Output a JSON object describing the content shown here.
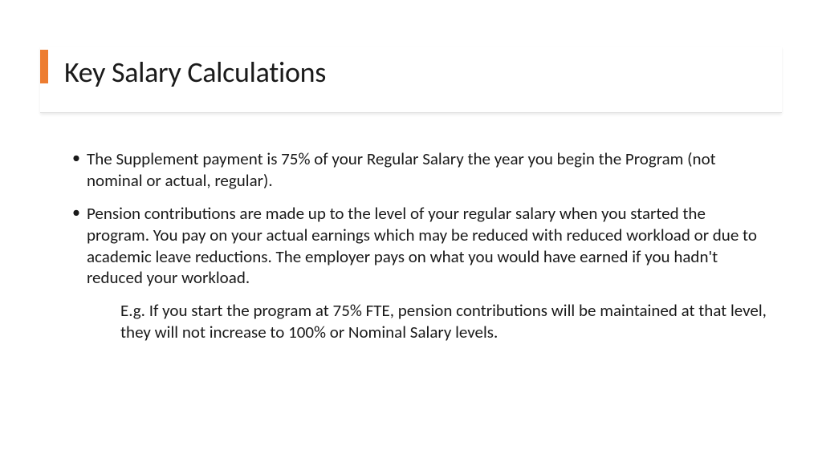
{
  "colors": {
    "accent": "#ed7d31",
    "text": "#1a1a1a",
    "divider": "#dcdcdc",
    "background": "#ffffff"
  },
  "typography": {
    "title_fontsize": 36,
    "body_fontsize": 21,
    "font_family": "Calibri"
  },
  "title": "Key Salary Calculations",
  "bullets": [
    "The Supplement payment is 75% of your Regular Salary the year you begin the Program (not nominal or actual, regular).",
    "Pension contributions are made up to the level of your regular salary when you started the program. You pay on your actual earnings which may be reduced with reduced workload or due to academic leave reductions. The employer pays on what you would have earned if you hadn't reduced your workload."
  ],
  "sub_note": "E.g. If you start the program at 75% FTE, pension contributions will be maintained at that level, they will not increase to 100% or Nominal Salary levels."
}
